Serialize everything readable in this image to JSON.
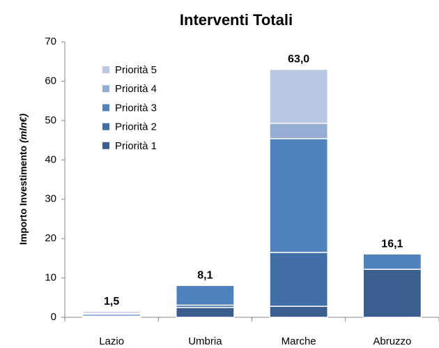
{
  "chart_data": {
    "type": "stacked_bar",
    "title": "Interventi Totali",
    "ylabel": "Importo Investimento ",
    "ylabel_unit": "(mln€)",
    "categories": [
      "Lazio",
      "Umbria",
      "Marche",
      "Abruzzo"
    ],
    "series": [
      {
        "name": "Priorità 1",
        "color": "#3a5f8e",
        "values": [
          0.1,
          2.5,
          2.8,
          12.2
        ]
      },
      {
        "name": "Priorità 2",
        "color": "#416ea4",
        "values": [
          0.2,
          0.6,
          13.7,
          0
        ]
      },
      {
        "name": "Priorità 3",
        "color": "#4f81bd",
        "values": [
          0.5,
          5.0,
          28.9,
          3.9
        ]
      },
      {
        "name": "Priorità 4",
        "color": "#95acd3",
        "values": [
          0.2,
          0,
          3.9,
          0
        ]
      },
      {
        "name": "Priorità 5",
        "color": "#b9c7e2",
        "values": [
          0.5,
          0,
          13.7,
          0
        ]
      }
    ],
    "totals": [
      1.5,
      8.1,
      63.0,
      16.1
    ],
    "total_labels": [
      "1,5",
      "8,1",
      "63,0",
      "16,1"
    ],
    "ylim": [
      0,
      70
    ],
    "yticks": [
      0,
      10,
      20,
      30,
      40,
      50,
      60,
      70
    ],
    "legend": "upper left",
    "grid": false
  }
}
